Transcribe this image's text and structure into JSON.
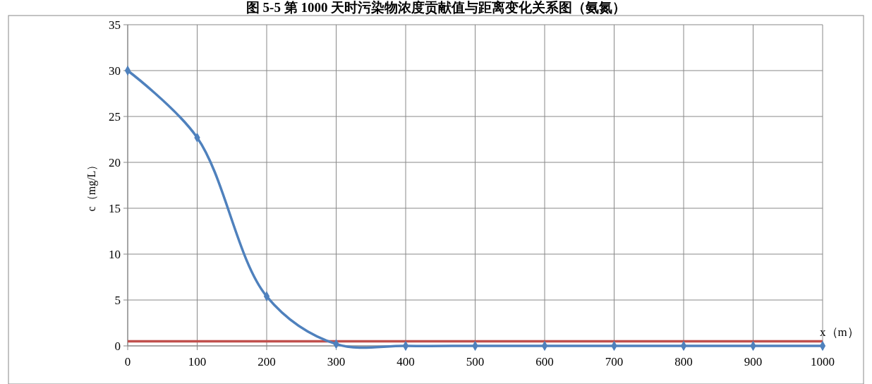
{
  "chart_data": {
    "type": "line",
    "title": "图 5-5 第 1000 天时污染物浓度贡献值与距离变化关系图（氨氮）",
    "xlabel": "x（m）",
    "ylabel": "c（mg/L）",
    "x": [
      0,
      100,
      200,
      300,
      400,
      500,
      600,
      700,
      800,
      900,
      1000
    ],
    "series": [
      {
        "color": "#4f81bd",
        "values": [
          30,
          22.7,
          5.4,
          0.2,
          0,
          0,
          0,
          0,
          0,
          0,
          0
        ]
      }
    ],
    "ref_lines": [
      {
        "axis": "y",
        "value": 0.5,
        "color": "#c0504d"
      }
    ],
    "xlim": [
      0,
      1000
    ],
    "xticks": [
      0,
      100,
      200,
      300,
      400,
      500,
      600,
      700,
      800,
      900,
      1000
    ],
    "ylim": [
      0,
      35
    ],
    "yticks": [
      0,
      5,
      10,
      15,
      20,
      25,
      30,
      35
    ],
    "grid": true,
    "marker": "diamond",
    "line_style": "solid"
  }
}
